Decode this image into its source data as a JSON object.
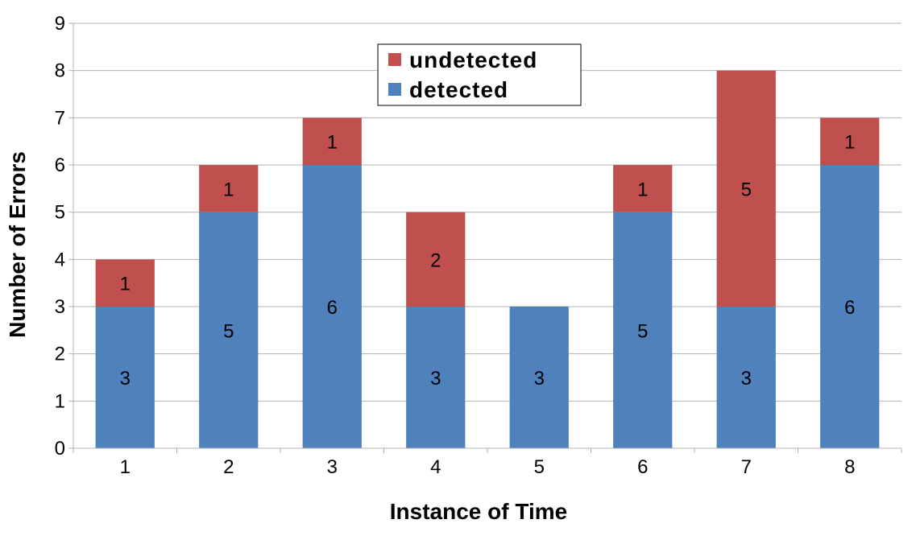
{
  "chart_data": {
    "type": "bar",
    "stacked": true,
    "categories": [
      "1",
      "2",
      "3",
      "4",
      "5",
      "6",
      "7",
      "8"
    ],
    "series": [
      {
        "name": "detected",
        "values": [
          3,
          5,
          6,
          3,
          3,
          5,
          3,
          6
        ],
        "color": "#4F81BD"
      },
      {
        "name": "undetected",
        "values": [
          1,
          1,
          1,
          2,
          0,
          1,
          5,
          1
        ],
        "color": "#C0504D"
      }
    ],
    "xlabel": "Instance of Time",
    "ylabel": "Number of Errors",
    "ylim": [
      0,
      9
    ],
    "yticks": [
      0,
      1,
      2,
      3,
      4,
      5,
      6,
      7,
      8,
      9
    ],
    "grid": true,
    "legend_position": "top-center",
    "legend_order": [
      "undetected",
      "detected"
    ],
    "data_labels": true
  }
}
